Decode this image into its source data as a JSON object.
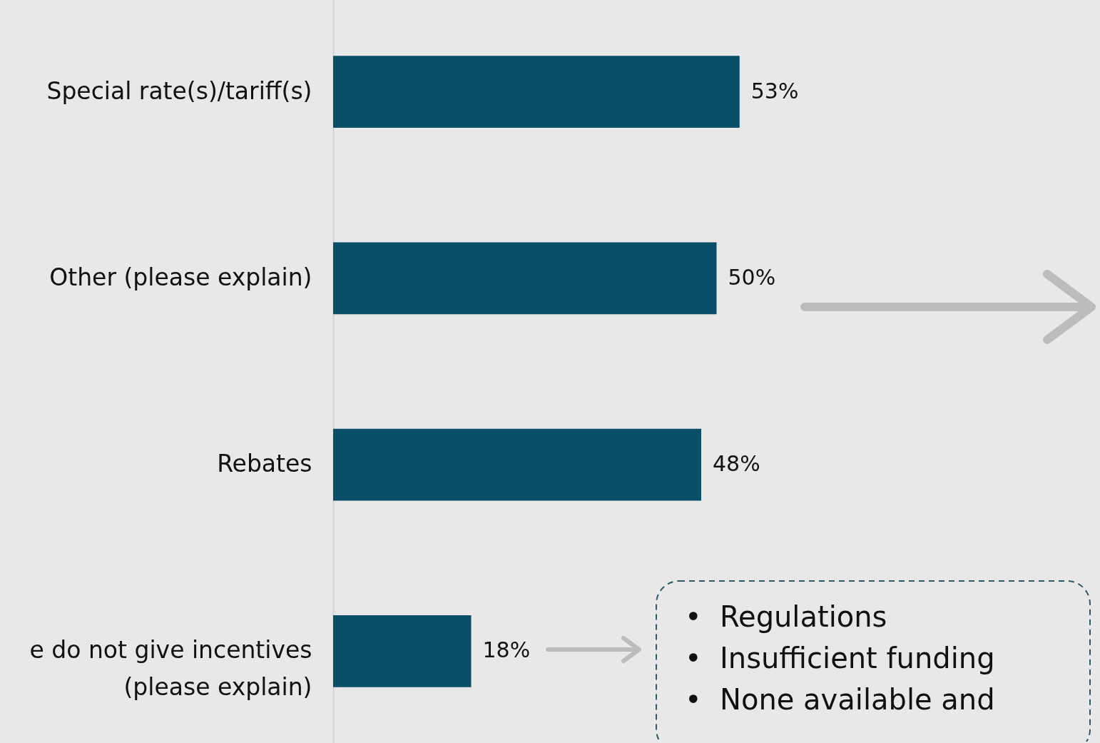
{
  "chart_data": {
    "type": "bar",
    "orientation": "horizontal",
    "categories": [
      "Special rate(s)/tariff(s)",
      "Other (please explain)",
      "Rebates",
      "e do not give incentives (please explain)"
    ],
    "values": [
      53,
      50,
      48,
      18
    ],
    "value_labels": [
      "53%",
      "50%",
      "48%",
      "18%"
    ],
    "color": "#0a4f68",
    "xlim": [
      0,
      100
    ],
    "tick_labels": "y",
    "grid": false,
    "annotations": [
      "•  Regulations",
      "•  Insufficient funding",
      "•  None available and"
    ]
  }
}
